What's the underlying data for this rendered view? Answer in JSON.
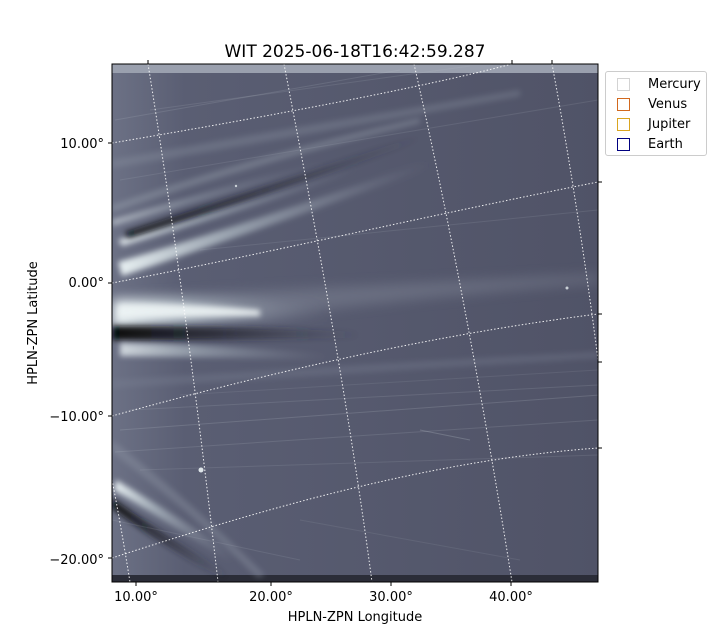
{
  "chart_data": {
    "type": "heatmap",
    "title": "WIT 2025-06-18T16:42:59.287",
    "xlabel": "HPLN-ZPN Longitude",
    "ylabel": "HPLN-ZPN Latitude",
    "x_ticks": [
      "10.00°",
      "20.00°",
      "30.00°",
      "40.00°"
    ],
    "y_ticks": [
      "10.00°",
      "0.00°",
      "−10.00°",
      "−20.00°"
    ],
    "xlim": [
      8.3,
      46.5
    ],
    "ylim": [
      -21.5,
      15.5
    ],
    "grid": true,
    "colormap": "bone",
    "legend_position": "upper-right-outside",
    "legend": [
      {
        "name": "Mercury",
        "color": "#d3d3d3"
      },
      {
        "name": "Venus",
        "color": "#d2691e"
      },
      {
        "name": "Jupiter",
        "color": "#daa520"
      },
      {
        "name": "Earth",
        "color": "#000080"
      }
    ]
  }
}
